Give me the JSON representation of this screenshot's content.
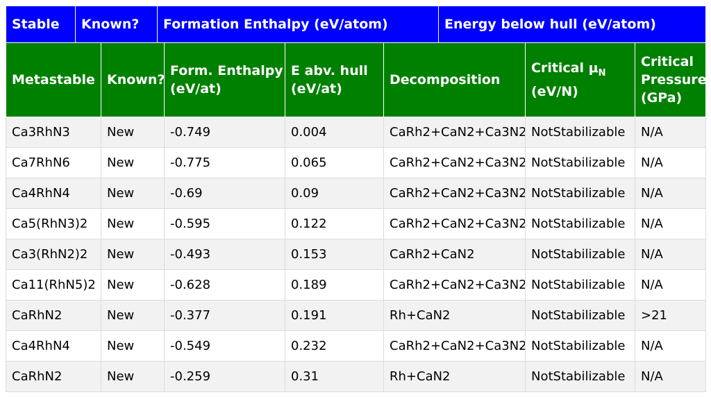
{
  "stable_header": {
    "col_stable": "Stable",
    "col_known": "Known?",
    "col_formation": "Formation Enthalpy (eV/atom)",
    "col_hull": "Energy below hull (eV/atom)"
  },
  "meta_header": {
    "col_metastable": "Metastable",
    "col_known": "Known?",
    "col_form_enthalpy": "Form. Enthalpy (eV/at)",
    "col_e_abv_hull": "E abv. hull (eV/at)",
    "col_decomposition": "Decomposition",
    "col_critical_mu": "Critical μ",
    "col_critical_mu_sub": "N",
    "col_critical_mu_unit": "(eV/N)",
    "col_critical_pressure": "Critical Pressure (GPa)"
  },
  "colors": {
    "stable_header_bg": "#0000ff",
    "meta_header_bg": "#008000",
    "known_new": "#ff00ff",
    "pressure_special": "#a52a2a"
  },
  "rows": [
    {
      "formula": "Ca3RhN3",
      "known": "New",
      "form_enthalpy": "-0.749",
      "e_abv_hull": "0.004",
      "decomposition": "CaRh2+CaN2+Ca3N2",
      "critical_mu": "NotStabilizable",
      "critical_pressure": "N/A"
    },
    {
      "formula": "Ca7RhN6",
      "known": "New",
      "form_enthalpy": "-0.775",
      "e_abv_hull": "0.065",
      "decomposition": "CaRh2+CaN2+Ca3N2",
      "critical_mu": "NotStabilizable",
      "critical_pressure": "N/A"
    },
    {
      "formula": "Ca4RhN4",
      "known": "New",
      "form_enthalpy": "-0.69",
      "e_abv_hull": "0.09",
      "decomposition": "CaRh2+CaN2+Ca3N2",
      "critical_mu": "NotStabilizable",
      "critical_pressure": "N/A"
    },
    {
      "formula": "Ca5(RhN3)2",
      "known": "New",
      "form_enthalpy": "-0.595",
      "e_abv_hull": "0.122",
      "decomposition": "CaRh2+CaN2+Ca3N2",
      "critical_mu": "NotStabilizable",
      "critical_pressure": "N/A"
    },
    {
      "formula": "Ca3(RhN2)2",
      "known": "New",
      "form_enthalpy": "-0.493",
      "e_abv_hull": "0.153",
      "decomposition": "CaRh2+CaN2",
      "critical_mu": "NotStabilizable",
      "critical_pressure": "N/A"
    },
    {
      "formula": "Ca11(RhN5)2",
      "known": "New",
      "form_enthalpy": "-0.628",
      "e_abv_hull": "0.189",
      "decomposition": "CaRh2+CaN2+Ca3N2",
      "critical_mu": "NotStabilizable",
      "critical_pressure": "N/A"
    },
    {
      "formula": "CaRhN2",
      "known": "New",
      "form_enthalpy": "-0.377",
      "e_abv_hull": "0.191",
      "decomposition": "Rh+CaN2",
      "critical_mu": "NotStabilizable",
      "critical_pressure": ">21"
    },
    {
      "formula": "Ca4RhN4",
      "known": "New",
      "form_enthalpy": "-0.549",
      "e_abv_hull": "0.232",
      "decomposition": "CaRh2+CaN2+Ca3N2",
      "critical_mu": "NotStabilizable",
      "critical_pressure": "N/A"
    },
    {
      "formula": "CaRhN2",
      "known": "New",
      "form_enthalpy": "-0.259",
      "e_abv_hull": "0.31",
      "decomposition": "Rh+CaN2",
      "critical_mu": "NotStabilizable",
      "critical_pressure": "N/A"
    }
  ]
}
